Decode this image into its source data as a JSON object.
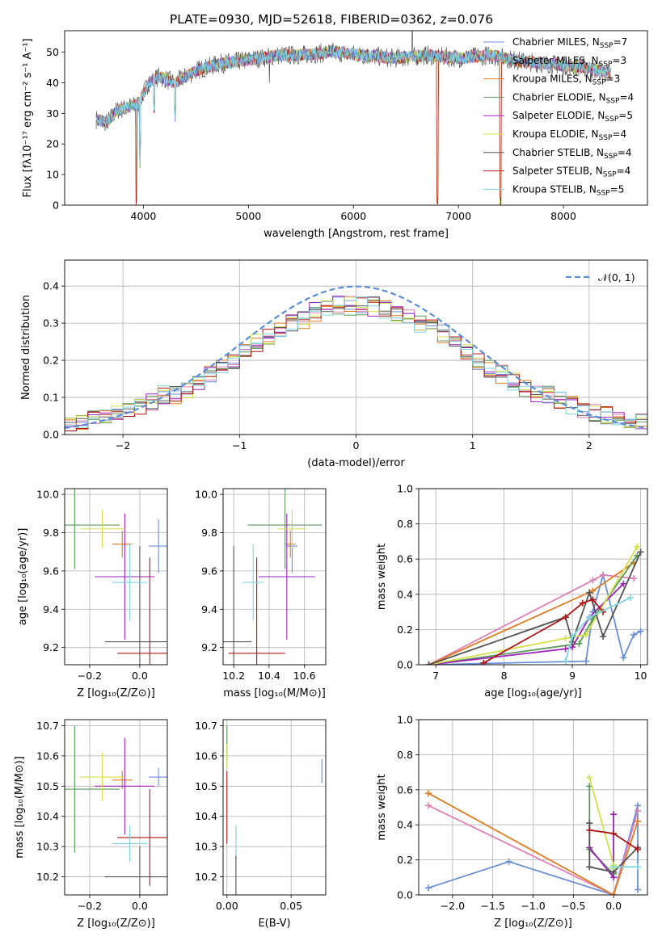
{
  "colors": {
    "Chabrier MILES": "#6a8fd8",
    "Salpeter MILES": "#e07fb5",
    "Kroupa MILES": "#e07b1f",
    "Chabrier ELODIE": "#5a9a5a",
    "Salpeter ELODIE": "#a020c0",
    "Kroupa ELODIE": "#d4e04a",
    "Chabrier STELIB": "#555555",
    "Salpeter STELIB": "#b01515",
    "Kroupa STELIB": "#7fd6e0",
    "normal_curve": "#5b8ed6",
    "grid": "#b0b0b0"
  },
  "chart_data": [
    {
      "id": "spectrum",
      "type": "line",
      "title": "PLATE=0930, MJD=52618, FIBERID=0362, z=0.076",
      "xlabel": "wavelength [Angstrom, rest frame]",
      "ylabel": "Flux [fλ10⁻¹⁷ erg cm⁻² s⁻¹ A⁻¹]",
      "xlim": [
        3250,
        8800
      ],
      "ylim": [
        0,
        57
      ],
      "xticks": [
        4000,
        5000,
        6000,
        7000,
        8000
      ],
      "yticks": [
        0,
        10,
        20,
        30,
        40,
        50
      ],
      "grid": false,
      "legend_position": "top-right",
      "legend": [
        {
          "name": "Chabrier MILES",
          "nssp": "7"
        },
        {
          "name": "Salpeter MILES",
          "nssp": "3"
        },
        {
          "name": "Kroupa MILES",
          "nssp": "3"
        },
        {
          "name": "Chabrier ELODIE",
          "nssp": "4"
        },
        {
          "name": "Salpeter ELODIE",
          "nssp": "5"
        },
        {
          "name": "Kroupa ELODIE",
          "nssp": "4"
        },
        {
          "name": "Chabrier STELIB",
          "nssp": "4"
        },
        {
          "name": "Salpeter STELIB",
          "nssp": "4"
        },
        {
          "name": "Kroupa STELIB",
          "nssp": "5"
        }
      ],
      "continuum": [
        [
          3550,
          28
        ],
        [
          3650,
          27
        ],
        [
          3750,
          31
        ],
        [
          3850,
          32
        ],
        [
          3950,
          33
        ],
        [
          4050,
          40
        ],
        [
          4150,
          42
        ],
        [
          4300,
          40
        ],
        [
          4500,
          44
        ],
        [
          4700,
          46
        ],
        [
          4900,
          47
        ],
        [
          5100,
          48
        ],
        [
          5300,
          49
        ],
        [
          5500,
          49
        ],
        [
          5800,
          50
        ],
        [
          6100,
          49
        ],
        [
          6400,
          48
        ],
        [
          6700,
          49
        ],
        [
          7000,
          48
        ],
        [
          7300,
          49
        ],
        [
          7600,
          47
        ],
        [
          7900,
          46
        ],
        [
          8200,
          45
        ],
        [
          8450,
          43
        ]
      ],
      "dips": [
        {
          "x": 3933,
          "y": 0
        },
        {
          "x": 3968,
          "y": 12
        },
        {
          "x": 4101,
          "y": 30
        },
        {
          "x": 4304,
          "y": 27
        },
        {
          "x": 6800,
          "y": 0
        },
        {
          "x": 7400,
          "y": 0
        }
      ]
    },
    {
      "id": "residuals",
      "type": "step",
      "xlabel": "(data-model)/error",
      "ylabel": "Normed distribution",
      "xlim": [
        -2.5,
        2.5
      ],
      "ylim": [
        0,
        0.47
      ],
      "xticks": [
        -2,
        -1,
        0,
        1,
        2
      ],
      "xtick_labels": [
        "−2",
        "−1",
        "0",
        "1",
        "2"
      ],
      "yticks": [
        0.0,
        0.1,
        0.2,
        0.3,
        0.4
      ],
      "grid": true,
      "legend_position": "top-right",
      "legend": [
        "𝒩(0, 1)"
      ],
      "bin_width": 0.1
    },
    {
      "id": "age-vs-Z",
      "type": "scatter-errorbar",
      "xlabel": "Z [log₁₀(Z/Z⊙)]",
      "ylabel": "age  [log₁₀(age/yr)]",
      "xlim": [
        -0.3,
        0.11
      ],
      "ylim": [
        9.11,
        10.03
      ],
      "xticks": [
        -0.2,
        0.0
      ],
      "xtick_labels": [
        "−0.2",
        "0.0"
      ],
      "yticks": [
        9.2,
        9.4,
        9.6,
        9.8,
        10.0
      ],
      "grid": true,
      "points": [
        {
          "model": "Chabrier MILES",
          "x": 0.075,
          "xerr": 0.04,
          "y": 9.73,
          "yerr": 0.14
        },
        {
          "model": "Kroupa MILES",
          "x": -0.07,
          "xerr": 0.04,
          "y": 9.74,
          "yerr": 0.07
        },
        {
          "model": "Chabrier ELODIE",
          "x": -0.26,
          "xerr": 0.18,
          "y": 9.84,
          "yerr": 0.23
        },
        {
          "model": "Salpeter ELODIE",
          "x": -0.06,
          "xerr": 0.12,
          "y": 9.57,
          "yerr": 0.33
        },
        {
          "model": "Kroupa ELODIE",
          "x": -0.15,
          "xerr": 0.09,
          "y": 9.82,
          "yerr": 0.1
        },
        {
          "model": "Chabrier STELIB",
          "x": 0.0,
          "xerr": 0.14,
          "y": 9.23,
          "yerr": 0.5
        },
        {
          "model": "Salpeter STELIB",
          "x": 0.04,
          "xerr": 0.13,
          "y": 9.17,
          "yerr": 0.5
        },
        {
          "model": "Kroupa STELIB",
          "x": -0.04,
          "xerr": 0.07,
          "y": 9.54,
          "yerr": 0.2
        }
      ]
    },
    {
      "id": "age-vs-mass",
      "type": "scatter-errorbar",
      "xlabel": "mass [log₁₀(M/M⊙)]",
      "ylabel": "",
      "xlim": [
        10.14,
        10.72
      ],
      "ylim": [
        9.11,
        10.03
      ],
      "xticks": [
        10.2,
        10.4,
        10.6
      ],
      "yticks": [
        9.2,
        9.4,
        9.6,
        9.8,
        10.0
      ],
      "grid": true,
      "points": [
        {
          "model": "Chabrier MILES",
          "x": 10.53,
          "xerr": 0.03,
          "y": 9.73,
          "yerr": 0.14
        },
        {
          "model": "Kroupa MILES",
          "x": 10.52,
          "xerr": 0.03,
          "y": 9.74,
          "yerr": 0.07
        },
        {
          "model": "Chabrier ELODIE",
          "x": 10.49,
          "xerr": 0.21,
          "y": 9.84,
          "yerr": 0.23
        },
        {
          "model": "Salpeter ELODIE",
          "x": 10.5,
          "xerr": 0.16,
          "y": 9.57,
          "yerr": 0.33
        },
        {
          "model": "Kroupa ELODIE",
          "x": 10.53,
          "xerr": 0.08,
          "y": 9.82,
          "yerr": 0.1
        },
        {
          "model": "Chabrier STELIB",
          "x": 10.2,
          "xerr": 0.1,
          "y": 9.23,
          "yerr": 0.5
        },
        {
          "model": "Salpeter STELIB",
          "x": 10.33,
          "xerr": 0.16,
          "y": 9.17,
          "yerr": 0.5
        },
        {
          "model": "Kroupa STELIB",
          "x": 10.31,
          "xerr": 0.06,
          "y": 9.54,
          "yerr": 0.2
        }
      ]
    },
    {
      "id": "mass-weight-vs-age",
      "type": "line",
      "xlabel": "age  [log₁₀(age/yr)]",
      "ylabel": "mass weight",
      "xlim": [
        6.75,
        10.1
      ],
      "ylim": [
        0,
        1.0
      ],
      "xticks": [
        7,
        8,
        9,
        10
      ],
      "yticks": [
        0.0,
        0.2,
        0.4,
        0.6,
        0.8,
        1.0
      ],
      "grid": true,
      "series": [
        {
          "model": "Chabrier MILES",
          "x": [
            6.9,
            9.2,
            9.3,
            9.45,
            9.75,
            9.9,
            10.0
          ],
          "y": [
            0.0,
            0.02,
            0.3,
            0.51,
            0.04,
            0.17,
            0.19
          ]
        },
        {
          "model": "Salpeter MILES",
          "x": [
            6.9,
            9.3,
            9.45,
            9.9
          ],
          "y": [
            0.0,
            0.48,
            0.51,
            0.49
          ]
        },
        {
          "model": "Kroupa MILES",
          "x": [
            6.9,
            9.3,
            9.9
          ],
          "y": [
            0.0,
            0.42,
            0.58
          ]
        },
        {
          "model": "Chabrier ELODIE",
          "x": [
            6.9,
            9.1,
            9.3,
            9.95
          ],
          "y": [
            0.0,
            0.12,
            0.26,
            0.62
          ]
        },
        {
          "model": "Salpeter ELODIE",
          "x": [
            6.9,
            8.9,
            9.0,
            9.25,
            9.75
          ],
          "y": [
            0.0,
            0.09,
            0.1,
            0.27,
            0.46
          ]
        },
        {
          "model": "Kroupa ELODIE",
          "x": [
            6.9,
            8.9,
            9.2,
            9.95
          ],
          "y": [
            0.0,
            0.15,
            0.17,
            0.67
          ]
        },
        {
          "model": "Chabrier STELIB",
          "x": [
            6.9,
            8.9,
            9.0,
            9.25,
            9.45,
            10.0
          ],
          "y": [
            0.0,
            0.27,
            0.13,
            0.41,
            0.16,
            0.64
          ]
        },
        {
          "model": "Salpeter STELIB",
          "x": [
            7.7,
            8.9,
            9.15,
            9.3,
            9.45
          ],
          "y": [
            0.01,
            0.27,
            0.35,
            0.37,
            0.3
          ]
        },
        {
          "model": "Kroupa STELIB",
          "x": [
            8.9,
            9.0,
            9.25,
            9.85
          ],
          "y": [
            0.02,
            0.16,
            0.27,
            0.38
          ]
        }
      ]
    },
    {
      "id": "mass-vs-Z",
      "type": "scatter-errorbar",
      "xlabel": "Z [log₁₀(Z/Z⊙)]",
      "ylabel": "mass [log₁₀(M/M⊙)]",
      "xlim": [
        -0.3,
        0.11
      ],
      "ylim": [
        10.14,
        10.72
      ],
      "xticks": [
        -0.2,
        0.0
      ],
      "xtick_labels": [
        "−0.2",
        "0.0"
      ],
      "yticks": [
        10.2,
        10.3,
        10.4,
        10.5,
        10.6,
        10.7
      ],
      "grid": true,
      "points": [
        {
          "model": "Chabrier MILES",
          "x": 0.075,
          "xerr": 0.04,
          "y": 10.53,
          "yerr": 0.03
        },
        {
          "model": "Kroupa MILES",
          "x": -0.07,
          "xerr": 0.04,
          "y": 10.52,
          "yerr": 0.03
        },
        {
          "model": "Chabrier ELODIE",
          "x": -0.26,
          "xerr": 0.18,
          "y": 10.49,
          "yerr": 0.21
        },
        {
          "model": "Salpeter ELODIE",
          "x": -0.06,
          "xerr": 0.12,
          "y": 10.5,
          "yerr": 0.16
        },
        {
          "model": "Kroupa ELODIE",
          "x": -0.15,
          "xerr": 0.09,
          "y": 10.53,
          "yerr": 0.08
        },
        {
          "model": "Chabrier STELIB",
          "x": 0.0,
          "xerr": 0.14,
          "y": 10.2,
          "yerr": 0.1
        },
        {
          "model": "Salpeter STELIB",
          "x": 0.04,
          "xerr": 0.13,
          "y": 10.33,
          "yerr": 0.16
        },
        {
          "model": "Kroupa STELIB",
          "x": -0.04,
          "xerr": 0.07,
          "y": 10.31,
          "yerr": 0.06
        }
      ]
    },
    {
      "id": "mass-vs-ebv",
      "type": "scatter-errorbar",
      "xlabel": "E(B-V)",
      "ylabel": "",
      "xlim": [
        -0.003,
        0.077
      ],
      "ylim": [
        10.14,
        10.72
      ],
      "xticks": [
        0.0,
        0.05
      ],
      "xtick_labels": [
        "0.00",
        "0.05"
      ],
      "yticks": [
        10.2,
        10.3,
        10.4,
        10.5,
        10.6,
        10.7
      ],
      "grid": true,
      "points": [
        {
          "model": "Chabrier MILES",
          "x": 0.074,
          "y": 10.55,
          "yerr": 0.04
        },
        {
          "model": "Chabrier ELODIE",
          "x": 0.0,
          "y": 10.64,
          "yerr": 0.06
        },
        {
          "model": "Kroupa ELODIE",
          "x": 0.0,
          "y": 10.6,
          "yerr": 0.04
        },
        {
          "model": "Salpeter STELIB",
          "x": 0.0,
          "y": 10.43,
          "yerr": 0.12
        },
        {
          "model": "Kroupa STELIB",
          "x": 0.007,
          "y": 10.31,
          "yerr": 0.06
        },
        {
          "model": "Chabrier STELIB",
          "x": 0.007,
          "y": 10.2,
          "yerr": 0.07
        }
      ]
    },
    {
      "id": "mass-weight-vs-Z",
      "type": "line",
      "xlabel": "Z [log₁₀(Z/Z⊙)]",
      "ylabel": "mass weight",
      "xlim": [
        -2.42,
        0.42
      ],
      "ylim": [
        0,
        1.0
      ],
      "xticks": [
        -2.0,
        -1.5,
        -1.0,
        -0.5,
        0.0
      ],
      "xtick_labels": [
        "−2.0",
        "−1.5",
        "−1.0",
        "−0.5",
        "0.0"
      ],
      "yticks": [
        0.0,
        0.2,
        0.4,
        0.6,
        0.8,
        1.0
      ],
      "grid": true,
      "series": [
        {
          "model": "Chabrier MILES",
          "x": [
            -2.3,
            -1.3,
            0.0,
            0.3,
            0.3
          ],
          "y": [
            0.04,
            0.19,
            0.0,
            0.51,
            0.03
          ]
        },
        {
          "model": "Salpeter MILES",
          "x": [
            -2.3,
            0.0,
            0.3
          ],
          "y": [
            0.51,
            0.0,
            0.48
          ]
        },
        {
          "model": "Kroupa MILES",
          "x": [
            -2.3,
            0.0,
            0.3
          ],
          "y": [
            0.58,
            0.0,
            0.42
          ]
        },
        {
          "model": "Chabrier ELODIE",
          "x": [
            -0.3,
            -0.3,
            0.0
          ],
          "y": [
            0.62,
            0.26,
            0.12
          ]
        },
        {
          "model": "Salpeter ELODIE",
          "x": [
            -0.3,
            0.0,
            0.0
          ],
          "y": [
            0.27,
            0.1,
            0.46
          ]
        },
        {
          "model": "Kroupa ELODIE",
          "x": [
            -0.3,
            0.0,
            0.0
          ],
          "y": [
            0.67,
            0.17,
            0.15
          ]
        },
        {
          "model": "Chabrier STELIB",
          "x": [
            -0.3,
            -0.3,
            0.0,
            0.3
          ],
          "y": [
            0.41,
            0.16,
            0.13,
            0.27
          ]
        },
        {
          "model": "Salpeter STELIB",
          "x": [
            -0.3,
            0.0,
            0.3
          ],
          "y": [
            0.37,
            0.35,
            0.26
          ]
        },
        {
          "model": "Kroupa STELIB",
          "x": [
            0.0,
            0.3
          ],
          "y": [
            0.16,
            0.16
          ]
        }
      ]
    }
  ]
}
